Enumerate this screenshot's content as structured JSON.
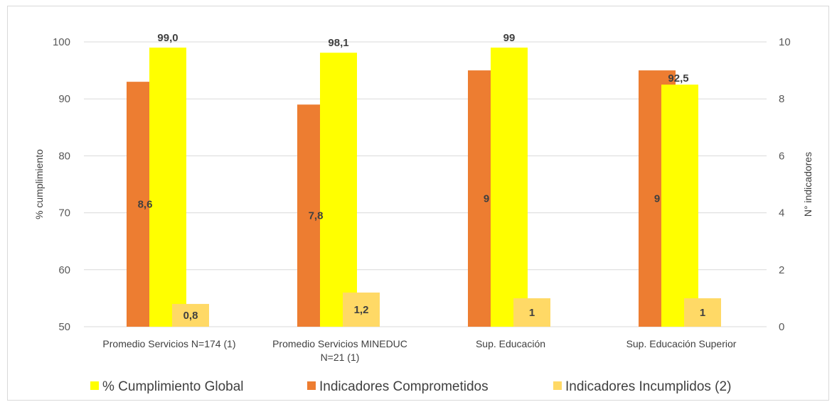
{
  "chart_data": {
    "type": "bar",
    "categories": [
      [
        "Promedio Servicios N=174 (1)"
      ],
      [
        "Promedio Servicios MINEDUC",
        "N=21 (1)"
      ],
      [
        "Sup. Educación"
      ],
      [
        "Sup. Educación Superior"
      ]
    ],
    "series": [
      {
        "name": "% Cumplimiento Global",
        "axis": "left",
        "color": "#ffff00",
        "values": [
          99.0,
          98.1,
          99,
          92.5
        ],
        "labels": [
          "99,0",
          "98,1",
          "99",
          "92,5"
        ]
      },
      {
        "name": "Indicadores Comprometidos",
        "axis": "right",
        "color": "#ed7d31",
        "values": [
          8.6,
          7.8,
          9,
          9
        ],
        "labels": [
          "8,6",
          "7,8",
          "9",
          "9"
        ]
      },
      {
        "name": "Indicadores Incumplidos (2)",
        "axis": "right",
        "color": "#ffd966",
        "values": [
          0.8,
          1.2,
          1,
          1
        ],
        "labels": [
          "0,8",
          "1,2",
          "1",
          "1"
        ]
      }
    ],
    "left_axis": {
      "label": "% cumplimiento",
      "range": [
        50,
        100
      ],
      "ticks": [
        50,
        60,
        70,
        80,
        90,
        100
      ]
    },
    "right_axis": {
      "label": "N° indicadores",
      "range": [
        0,
        10
      ],
      "ticks": [
        0,
        2,
        4,
        6,
        8,
        10
      ]
    },
    "grid": true,
    "legend_position": "bottom",
    "gridline_color": "#d9d9d9"
  }
}
